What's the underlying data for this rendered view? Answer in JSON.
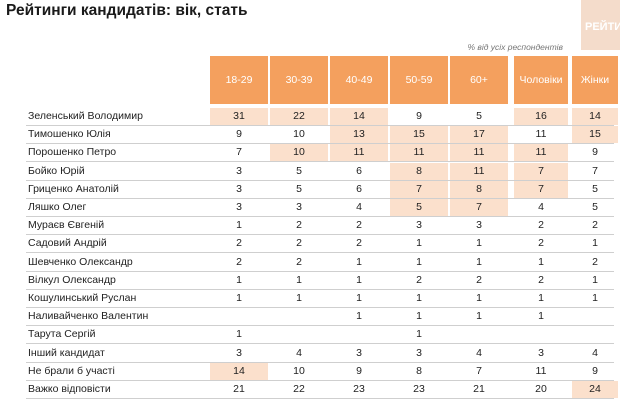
{
  "title": "Рейтинги кандидатів: вік, стать",
  "watermark": "РЕЙТИНГ",
  "note": "% від усіх респондентів",
  "colors": {
    "header": "#f4a05e",
    "highlight": "#fbe0cc"
  },
  "chart_data": {
    "type": "table",
    "columns": [
      "18-29",
      "30-39",
      "40-49",
      "50-59",
      "60+",
      "Чоловіки",
      "Жінки"
    ],
    "rows": [
      {
        "name": "Зеленський Володимир",
        "values": [
          "31",
          "22",
          "14",
          "9",
          "5",
          "16",
          "14"
        ],
        "highlight": [
          true,
          true,
          true,
          false,
          false,
          true,
          true
        ]
      },
      {
        "name": "Тимошенко Юлія",
        "values": [
          "9",
          "10",
          "13",
          "15",
          "17",
          "11",
          "15"
        ],
        "highlight": [
          false,
          false,
          true,
          true,
          true,
          false,
          true
        ]
      },
      {
        "name": "Порошенко Петро",
        "values": [
          "7",
          "10",
          "11",
          "11",
          "11",
          "11",
          "9"
        ],
        "highlight": [
          false,
          true,
          true,
          true,
          true,
          true,
          false
        ]
      },
      {
        "name": "Бойко Юрій",
        "values": [
          "3",
          "5",
          "6",
          "8",
          "11",
          "7",
          "7"
        ],
        "highlight": [
          false,
          false,
          false,
          true,
          true,
          true,
          false
        ]
      },
      {
        "name": "Гриценко Анатолій",
        "values": [
          "3",
          "5",
          "6",
          "7",
          "8",
          "7",
          "5"
        ],
        "highlight": [
          false,
          false,
          false,
          true,
          true,
          true,
          false
        ]
      },
      {
        "name": "Ляшко Олег",
        "values": [
          "3",
          "3",
          "4",
          "5",
          "7",
          "4",
          "5"
        ],
        "highlight": [
          false,
          false,
          false,
          true,
          true,
          false,
          false
        ]
      },
      {
        "name": "Мураєв Євгеній",
        "values": [
          "1",
          "2",
          "2",
          "3",
          "3",
          "2",
          "2"
        ],
        "highlight": [
          false,
          false,
          false,
          false,
          false,
          false,
          false
        ]
      },
      {
        "name": "Садовий Андрій",
        "values": [
          "2",
          "2",
          "2",
          "1",
          "1",
          "2",
          "1"
        ],
        "highlight": [
          false,
          false,
          false,
          false,
          false,
          false,
          false
        ]
      },
      {
        "name": "Шевченко Олександр",
        "values": [
          "2",
          "2",
          "1",
          "1",
          "1",
          "1",
          "2"
        ],
        "highlight": [
          false,
          false,
          false,
          false,
          false,
          false,
          false
        ]
      },
      {
        "name": "Вілкул Олександр",
        "values": [
          "1",
          "1",
          "1",
          "2",
          "2",
          "2",
          "1"
        ],
        "highlight": [
          false,
          false,
          false,
          false,
          false,
          false,
          false
        ]
      },
      {
        "name": "Кошулинський Руслан",
        "values": [
          "1",
          "1",
          "1",
          "1",
          "1",
          "1",
          "1"
        ],
        "highlight": [
          false,
          false,
          false,
          false,
          false,
          false,
          false
        ]
      },
      {
        "name": "Наливайченко Валентин",
        "values": [
          "",
          "",
          "1",
          "1",
          "1",
          "1",
          ""
        ],
        "highlight": [
          false,
          false,
          false,
          false,
          false,
          false,
          false
        ]
      },
      {
        "name": "Тарута Сергій",
        "values": [
          "1",
          "",
          "",
          "1",
          "",
          "",
          ""
        ],
        "highlight": [
          false,
          false,
          false,
          false,
          false,
          false,
          false
        ]
      },
      {
        "name": "Інший кандидат",
        "values": [
          "3",
          "4",
          "3",
          "3",
          "4",
          "3",
          "4"
        ],
        "highlight": [
          false,
          false,
          false,
          false,
          false,
          false,
          false
        ]
      },
      {
        "name": "Не брали б участі",
        "values": [
          "14",
          "10",
          "9",
          "8",
          "7",
          "11",
          "9"
        ],
        "highlight": [
          true,
          false,
          false,
          false,
          false,
          false,
          false
        ]
      },
      {
        "name": "Важко відповісти",
        "values": [
          "21",
          "22",
          "23",
          "23",
          "21",
          "20",
          "24"
        ],
        "highlight": [
          false,
          false,
          false,
          false,
          false,
          false,
          true
        ]
      }
    ]
  }
}
